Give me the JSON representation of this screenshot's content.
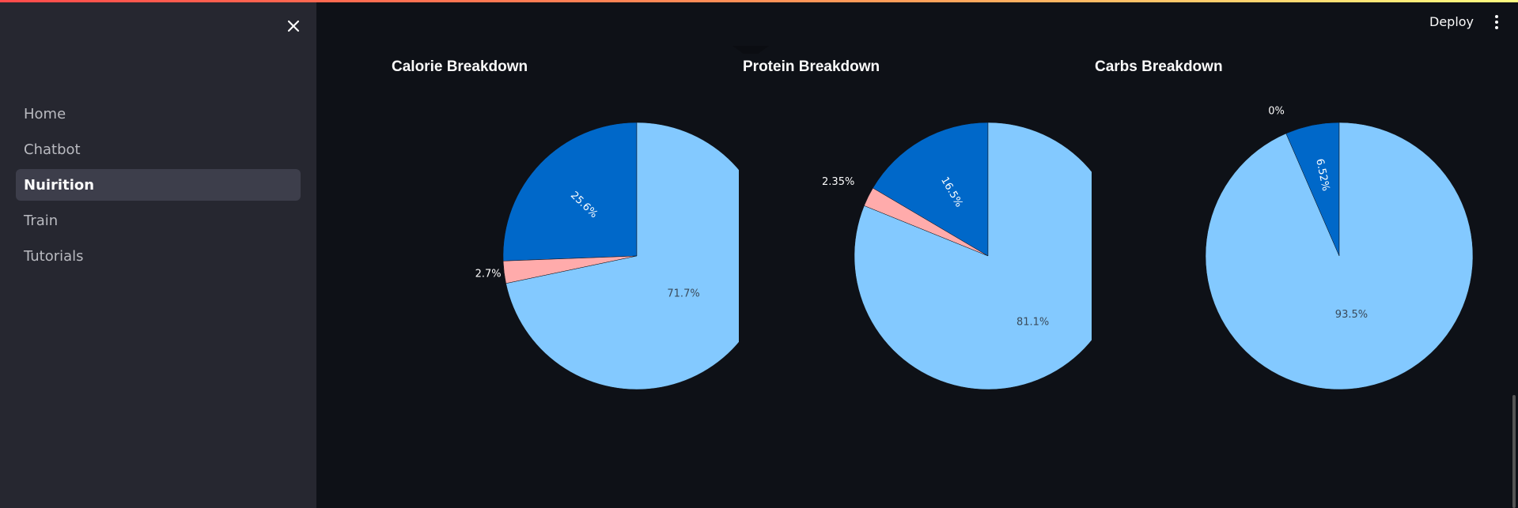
{
  "sidebar": {
    "items": [
      {
        "label": "Home",
        "active": false
      },
      {
        "label": "Chatbot",
        "active": false
      },
      {
        "label": "Nuirition",
        "active": true
      },
      {
        "label": "Train",
        "active": false
      },
      {
        "label": "Tutorials",
        "active": false
      }
    ]
  },
  "header": {
    "deploy_label": "Deploy"
  },
  "colors": {
    "light_blue": "#83c9ff",
    "dark_blue": "#0068c9",
    "pink": "#ffabab"
  },
  "chart_data": [
    {
      "type": "pie",
      "title": "Calorie Breakdown",
      "slices": [
        {
          "value": 25.6,
          "label": "25.6%",
          "color": "#0068c9"
        },
        {
          "value": 2.7,
          "label": "2.7%",
          "color": "#ffabab"
        },
        {
          "value": 71.7,
          "label": "71.7%",
          "color": "#83c9ff"
        }
      ]
    },
    {
      "type": "pie",
      "title": "Protein Breakdown",
      "slices": [
        {
          "value": 16.5,
          "label": "16.5%",
          "color": "#0068c9"
        },
        {
          "value": 2.35,
          "label": "2.35%",
          "color": "#ffabab"
        },
        {
          "value": 81.1,
          "label": "81.1%",
          "color": "#83c9ff"
        }
      ]
    },
    {
      "type": "pie",
      "title": "Carbs Breakdown",
      "slices": [
        {
          "value": 6.52,
          "label": "6.52%",
          "color": "#0068c9"
        },
        {
          "value": 0,
          "label": "0%",
          "color": "#ffabab"
        },
        {
          "value": 93.5,
          "label": "93.5%",
          "color": "#83c9ff"
        }
      ]
    }
  ]
}
